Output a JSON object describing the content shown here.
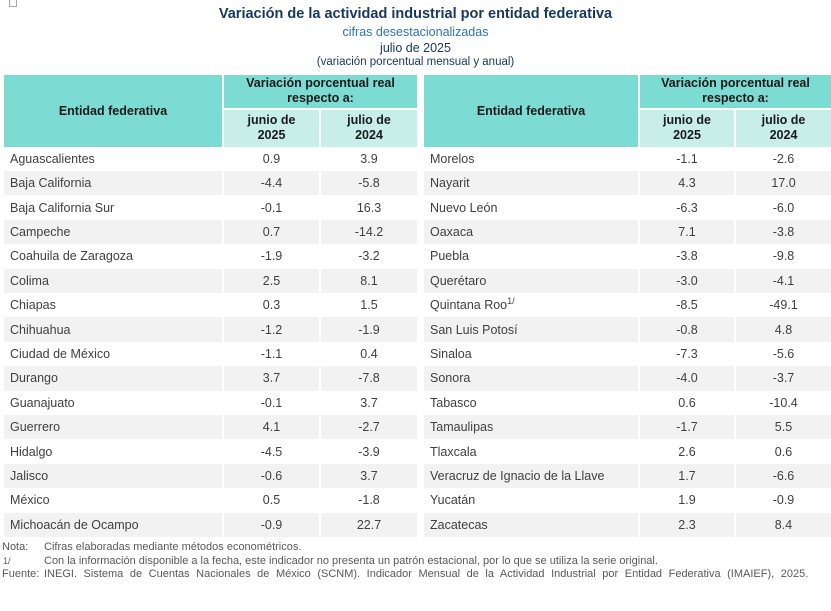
{
  "header": {
    "title": "Variación de la actividad industrial por entidad federativa",
    "subtitle": "cifras desestacionalizadas",
    "period": "julio de 2025",
    "measure_note": "(variación porcentual mensual y anual)"
  },
  "icons": {
    "corner": "empty-checkbox"
  },
  "table_headers": {
    "entity": "Entidad federativa",
    "group": "Variación porcentual real respecto a:",
    "col_prev_month": "junio de 2025",
    "col_prev_year": "julio de 2024"
  },
  "chart_data": {
    "type": "table",
    "title": "Variación de la actividad industrial por entidad federativa, julio de 2025",
    "subtitle": "cifras desestacionalizadas (variación porcentual mensual y anual)",
    "columns": [
      "Entidad federativa",
      "junio de 2025",
      "julio de 2024"
    ],
    "layout": {
      "split_into_two_tables_after_row": 16,
      "value_decimals": 1
    },
    "rows": [
      {
        "entity": "Aguascalientes",
        "jun": 0.9,
        "jul": 3.9
      },
      {
        "entity": "Baja California",
        "jun": -4.4,
        "jul": -5.8
      },
      {
        "entity": "Baja California Sur",
        "jun": -0.1,
        "jul": 16.3
      },
      {
        "entity": "Campeche",
        "jun": 0.7,
        "jul": -14.2
      },
      {
        "entity": "Coahuila de Zaragoza",
        "jun": -1.9,
        "jul": -3.2
      },
      {
        "entity": "Colima",
        "jun": 2.5,
        "jul": 8.1
      },
      {
        "entity": "Chiapas",
        "jun": 0.3,
        "jul": 1.5
      },
      {
        "entity": "Chihuahua",
        "jun": -1.2,
        "jul": -1.9
      },
      {
        "entity": "Ciudad de México",
        "jun": -1.1,
        "jul": 0.4
      },
      {
        "entity": "Durango",
        "jun": 3.7,
        "jul": -7.8
      },
      {
        "entity": "Guanajuato",
        "jun": -0.1,
        "jul": 3.7
      },
      {
        "entity": "Guerrero",
        "jun": 4.1,
        "jul": -2.7
      },
      {
        "entity": "Hidalgo",
        "jun": -4.5,
        "jul": -3.9
      },
      {
        "entity": "Jalisco",
        "jun": -0.6,
        "jul": 3.7
      },
      {
        "entity": "México",
        "jun": 0.5,
        "jul": -1.8
      },
      {
        "entity": "Michoacán de Ocampo",
        "jun": -0.9,
        "jul": 22.7
      },
      {
        "entity": "Morelos",
        "jun": -1.1,
        "jul": -2.6
      },
      {
        "entity": "Nayarit",
        "jun": 4.3,
        "jul": 17.0
      },
      {
        "entity": "Nuevo León",
        "jun": -6.3,
        "jul": -6.0
      },
      {
        "entity": "Oaxaca",
        "jun": 7.1,
        "jul": -3.8
      },
      {
        "entity": "Puebla",
        "jun": -3.8,
        "jul": -9.8
      },
      {
        "entity": "Querétaro",
        "jun": -3.0,
        "jul": -4.1
      },
      {
        "entity": "Quintana Roo",
        "sup": "1/",
        "jun": -8.5,
        "jul": -49.1
      },
      {
        "entity": "San Luis Potosí",
        "jun": -0.8,
        "jul": 4.8
      },
      {
        "entity": "Sinaloa",
        "jun": -7.3,
        "jul": -5.6
      },
      {
        "entity": "Sonora",
        "jun": -4.0,
        "jul": -3.7
      },
      {
        "entity": "Tabasco",
        "jun": 0.6,
        "jul": -10.4
      },
      {
        "entity": "Tamaulipas",
        "jun": -1.7,
        "jul": 5.5
      },
      {
        "entity": "Tlaxcala",
        "jun": 2.6,
        "jul": 0.6
      },
      {
        "entity": "Veracruz de Ignacio de la Llave",
        "jun": 1.7,
        "jul": -6.6
      },
      {
        "entity": "Yucatán",
        "jun": 1.9,
        "jul": -0.9
      },
      {
        "entity": "Zacatecas",
        "jun": 2.3,
        "jul": 8.4
      }
    ]
  },
  "footnotes": {
    "nota_label": "Nota:",
    "nota_text": "Cifras elaboradas mediante métodos econométricos.",
    "fn1_label": "1/",
    "fn1_text": "Con la información disponible a la fecha, este indicador no presenta un patrón estacional, por lo que se utiliza la serie original.",
    "fuente_label": "Fuente:",
    "fuente_text": "INEGI. Sistema de Cuentas Nacionales de México (SCNM). Indicador Mensual de la Actividad Industrial por Entidad Federativa (IMAIEF), 2025."
  },
  "colors": {
    "header_teal": "#7CDBD2",
    "subheader_teal": "#C8EEE9",
    "title_navy": "#17375E",
    "subtitle_blue": "#2E74B5",
    "row_stripe_gray": "#F2F2F2",
    "body_text": "#3F3F3F",
    "footnote_gray": "#595959"
  }
}
